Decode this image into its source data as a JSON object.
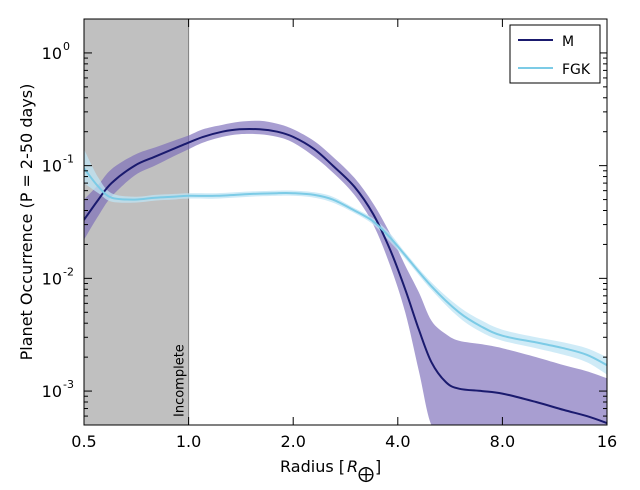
{
  "chart_data": {
    "type": "line",
    "title": "",
    "xlabel_main": "Radius [",
    "xlabel_sym": "R",
    "xlabel_sub": "⨁",
    "xlabel_end": "]",
    "ylabel": "Planet Occurrence (P = 2-50 days)",
    "xscale": "log2",
    "yscale": "log10",
    "xlim": [
      0.5,
      16
    ],
    "ylim": [
      0.0005,
      2.0
    ],
    "xticks": [
      {
        "value": 0.5,
        "label": "0.5"
      },
      {
        "value": 1.0,
        "label": "1.0"
      },
      {
        "value": 2.0,
        "label": "2.0"
      },
      {
        "value": 4.0,
        "label": "4.0"
      },
      {
        "value": 8.0,
        "label": "8.0"
      },
      {
        "value": 16,
        "label": "16"
      }
    ],
    "yticks": [
      {
        "value": 1,
        "base": "10",
        "exp": "0"
      },
      {
        "value": 0.1,
        "base": "10",
        "exp": "-1"
      },
      {
        "value": 0.01,
        "base": "10",
        "exp": "-2"
      },
      {
        "value": 0.001,
        "base": "10",
        "exp": "-3"
      }
    ],
    "incomplete_region": {
      "x_from": 0.5,
      "x_to": 1.0,
      "label": "Incomplete",
      "color": "#c0c0c0"
    },
    "legend": {
      "placement": "top-right"
    },
    "series": [
      {
        "name": "M",
        "color": "#1a1a6e",
        "band_color": "#7a6ab8",
        "x": [
          0.5,
          0.55,
          0.6,
          0.7,
          0.8,
          0.9,
          1.0,
          1.1,
          1.25,
          1.4,
          1.6,
          1.8,
          2.0,
          2.3,
          2.6,
          3.0,
          3.4,
          3.8,
          4.2,
          4.6,
          5.0,
          5.5,
          6.0,
          7.0,
          8.0,
          10.0,
          12.0,
          14.0,
          16.0
        ],
        "y": [
          0.033,
          0.05,
          0.07,
          0.1,
          0.12,
          0.14,
          0.16,
          0.18,
          0.2,
          0.21,
          0.21,
          0.2,
          0.18,
          0.14,
          0.1,
          0.065,
          0.037,
          0.018,
          0.008,
          0.0035,
          0.0018,
          0.0012,
          0.00105,
          0.001,
          0.00095,
          0.0008,
          0.00068,
          0.0006,
          0.00052
        ],
        "low": [
          0.022,
          0.036,
          0.053,
          0.082,
          0.1,
          0.12,
          0.14,
          0.16,
          0.18,
          0.19,
          0.19,
          0.18,
          0.16,
          0.12,
          0.087,
          0.055,
          0.03,
          0.013,
          0.005,
          0.0015,
          0.0005,
          0.0005,
          0.0005,
          0.0005,
          0.0005,
          0.0005,
          0.0005,
          0.0005,
          0.0005
        ],
        "high": [
          0.05,
          0.068,
          0.093,
          0.125,
          0.145,
          0.165,
          0.185,
          0.21,
          0.23,
          0.245,
          0.25,
          0.235,
          0.21,
          0.165,
          0.12,
          0.078,
          0.046,
          0.025,
          0.013,
          0.0075,
          0.0042,
          0.0032,
          0.0028,
          0.0026,
          0.0024,
          0.002,
          0.0017,
          0.0015,
          0.0013
        ]
      },
      {
        "name": "FGK",
        "color": "#7ccbe6",
        "band_color": "#bfe4f4",
        "x": [
          0.5,
          0.55,
          0.6,
          0.7,
          0.8,
          0.9,
          1.0,
          1.2,
          1.5,
          1.8,
          2.0,
          2.3,
          2.6,
          3.0,
          3.4,
          3.8,
          4.2,
          5.0,
          6.0,
          7.0,
          8.0,
          10.0,
          12.0,
          14.0,
          16.0
        ],
        "y": [
          0.095,
          0.065,
          0.052,
          0.05,
          0.052,
          0.053,
          0.054,
          0.054,
          0.056,
          0.057,
          0.057,
          0.055,
          0.05,
          0.04,
          0.032,
          0.023,
          0.016,
          0.0085,
          0.005,
          0.0037,
          0.0031,
          0.0027,
          0.0024,
          0.0021,
          0.0017
        ],
        "low": [
          0.07,
          0.057,
          0.048,
          0.047,
          0.049,
          0.05,
          0.051,
          0.051,
          0.053,
          0.054,
          0.054,
          0.052,
          0.047,
          0.038,
          0.03,
          0.021,
          0.015,
          0.0079,
          0.0045,
          0.0033,
          0.0028,
          0.0024,
          0.0021,
          0.0018,
          0.0014
        ],
        "high": [
          0.14,
          0.078,
          0.057,
          0.053,
          0.055,
          0.056,
          0.057,
          0.057,
          0.059,
          0.06,
          0.06,
          0.058,
          0.053,
          0.042,
          0.034,
          0.025,
          0.017,
          0.0092,
          0.0056,
          0.0042,
          0.0035,
          0.003,
          0.0027,
          0.0024,
          0.002
        ]
      }
    ]
  }
}
